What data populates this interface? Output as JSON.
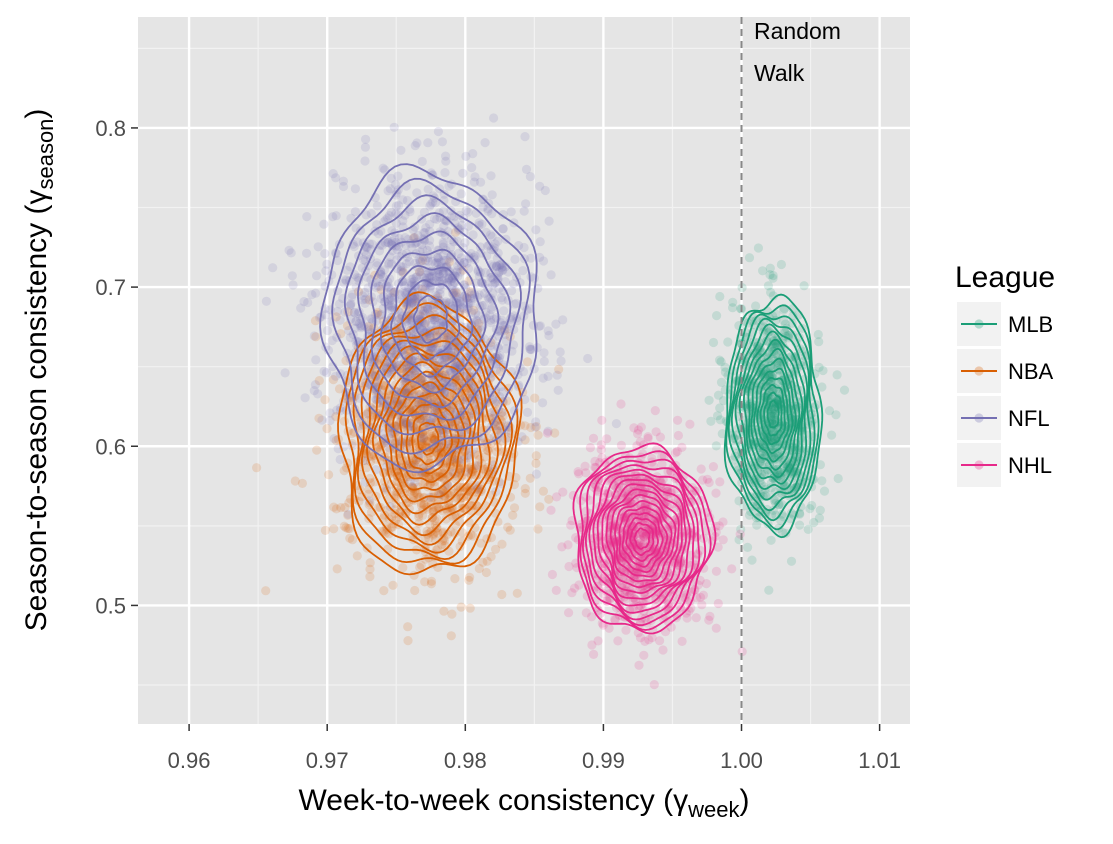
{
  "chart_data": {
    "type": "scatter",
    "title": "",
    "xlabel": {
      "main": "Week-to-week consistency (",
      "greek": "γ",
      "sub": "week",
      "close": ")"
    },
    "ylabel": {
      "main": "Season-to-season consistency (",
      "greek": "γ",
      "sub": "season",
      "close": ")"
    },
    "xlim": [
      0.9563,
      1.0122
    ],
    "ylim": [
      0.4255,
      0.8697
    ],
    "x_ticks": [
      {
        "value": 0.96,
        "label": "0.96"
      },
      {
        "value": 0.97,
        "label": "0.97"
      },
      {
        "value": 0.98,
        "label": "0.98"
      },
      {
        "value": 0.99,
        "label": "0.99"
      },
      {
        "value": 1.0,
        "label": "1.00"
      },
      {
        "value": 1.01,
        "label": "1.01"
      }
    ],
    "y_ticks": [
      {
        "value": 0.5,
        "label": "0.5"
      },
      {
        "value": 0.6,
        "label": "0.6"
      },
      {
        "value": 0.7,
        "label": "0.7"
      },
      {
        "value": 0.8,
        "label": "0.8"
      }
    ],
    "grid": true,
    "legend": {
      "title": "League",
      "position": "right"
    },
    "reference_line": {
      "x": 1.0,
      "style": "dashed",
      "label_lines": [
        "Random",
        "Walk"
      ]
    },
    "series": [
      {
        "name": "MLB",
        "color": "#1b9e77",
        "center": [
          1.0023,
          0.62
        ],
        "sd": [
          0.0016,
          0.034
        ],
        "rho": -0.1,
        "n": 900,
        "contour_levels": 14
      },
      {
        "name": "NBA",
        "color": "#d95f02",
        "center": [
          0.9773,
          0.605
        ],
        "sd": [
          0.003,
          0.04
        ],
        "rho": -0.1,
        "n": 1300,
        "contour_levels": 14
      },
      {
        "name": "NFL",
        "color": "#7570b3",
        "center": [
          0.9775,
          0.68
        ],
        "sd": [
          0.0036,
          0.043
        ],
        "rho": -0.05,
        "n": 1500,
        "contour_levels": 9
      },
      {
        "name": "NHL",
        "color": "#e7298a",
        "center": [
          0.9928,
          0.542
        ],
        "sd": [
          0.0023,
          0.027
        ],
        "rho": 0.0,
        "n": 1000,
        "contour_levels": 16
      }
    ]
  }
}
